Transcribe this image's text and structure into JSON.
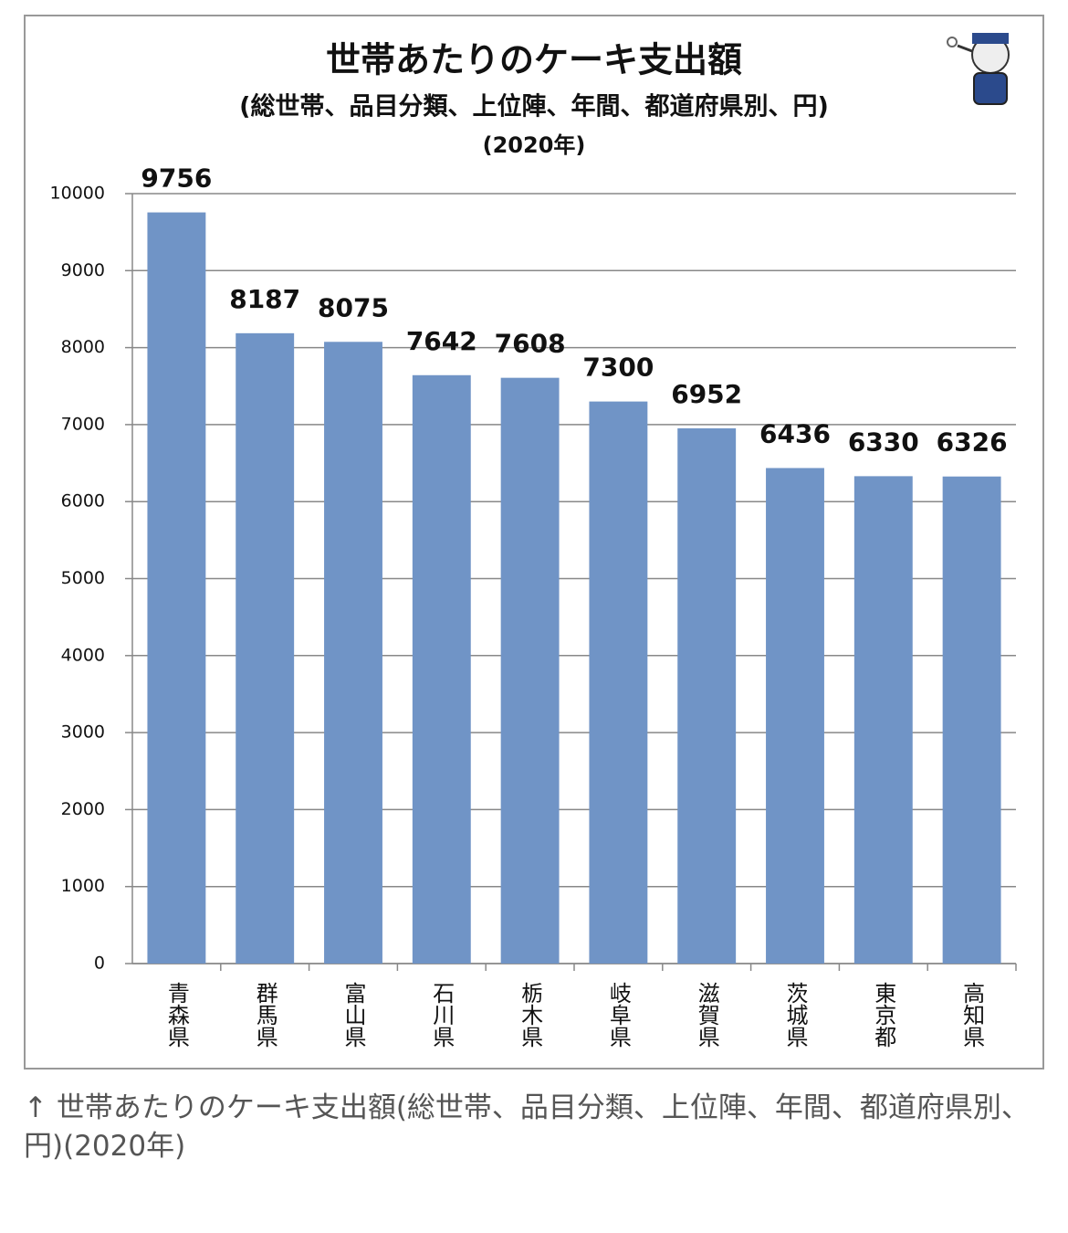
{
  "chart_data": {
    "type": "bar",
    "title": "世帯あたりのケーキ支出額",
    "subtitle": "(総世帯、品目分類、上位陣、年間、都道府県別、円)",
    "period": "(2020年)",
    "categories": [
      "青森県",
      "群馬県",
      "富山県",
      "石川県",
      "栃木県",
      "岐阜県",
      "滋賀県",
      "茨城県",
      "東京都",
      "高知県"
    ],
    "values": [
      9756,
      8187,
      8075,
      7642,
      7608,
      7300,
      6952,
      6436,
      6330,
      6326
    ],
    "color": "#7094c6",
    "ylim": [
      0,
      10000
    ],
    "yticks": [
      0,
      1000,
      2000,
      3000,
      4000,
      5000,
      6000,
      7000,
      8000,
      9000,
      10000
    ],
    "grid": true
  },
  "caption": "↑ 世帯あたりのケーキ支出額(総世帯、品目分類、上位陣、年間、都道府県別、円)(2020年)"
}
